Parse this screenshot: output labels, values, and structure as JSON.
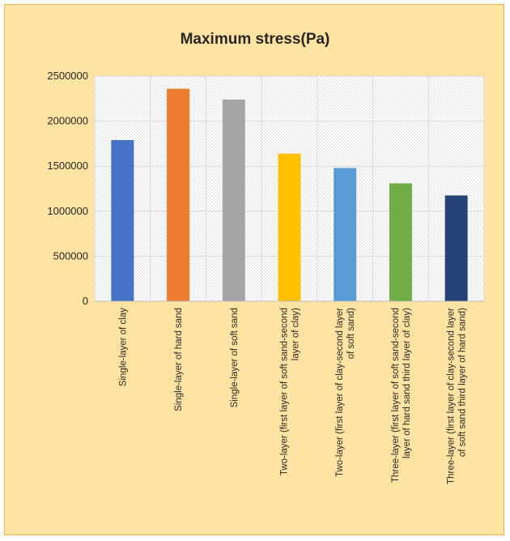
{
  "chart_data": {
    "type": "bar",
    "title": "Maximum stress(Pa)",
    "xlabel": "",
    "ylabel": "",
    "ylim": [
      0,
      2500000
    ],
    "yticks": [
      0,
      500000,
      1000000,
      1500000,
      2000000,
      2500000
    ],
    "ytick_labels": [
      "0",
      "500000",
      "1000000",
      "1500000",
      "2000000",
      "2500000"
    ],
    "grid": true,
    "legend": "none",
    "categories": [
      [
        "Single-layer of clay"
      ],
      [
        "Single-layer of hard sand"
      ],
      [
        "Single-layer of soft sand"
      ],
      [
        "Two-layer (first layer of soft sand-second",
        "layer of clay)"
      ],
      [
        "Two-layer (first layer of clay-second layer",
        "of soft sand)"
      ],
      [
        "Three-layer (first layer of soft sand-second",
        "layer of hard sand third layer of clay)"
      ],
      [
        "Three-layer (first layer of clay-second layer",
        "of soft sand third layer of hard sand)"
      ]
    ],
    "values": [
      1790000,
      2360000,
      2240000,
      1640000,
      1480000,
      1310000,
      1175000
    ],
    "colors": [
      "#4472c4",
      "#ed7d31",
      "#a5a5a5",
      "#ffc000",
      "#5b9bd5",
      "#70ad47",
      "#264478"
    ],
    "background": "#ffe3a3",
    "plot_background": "#ffffff"
  }
}
